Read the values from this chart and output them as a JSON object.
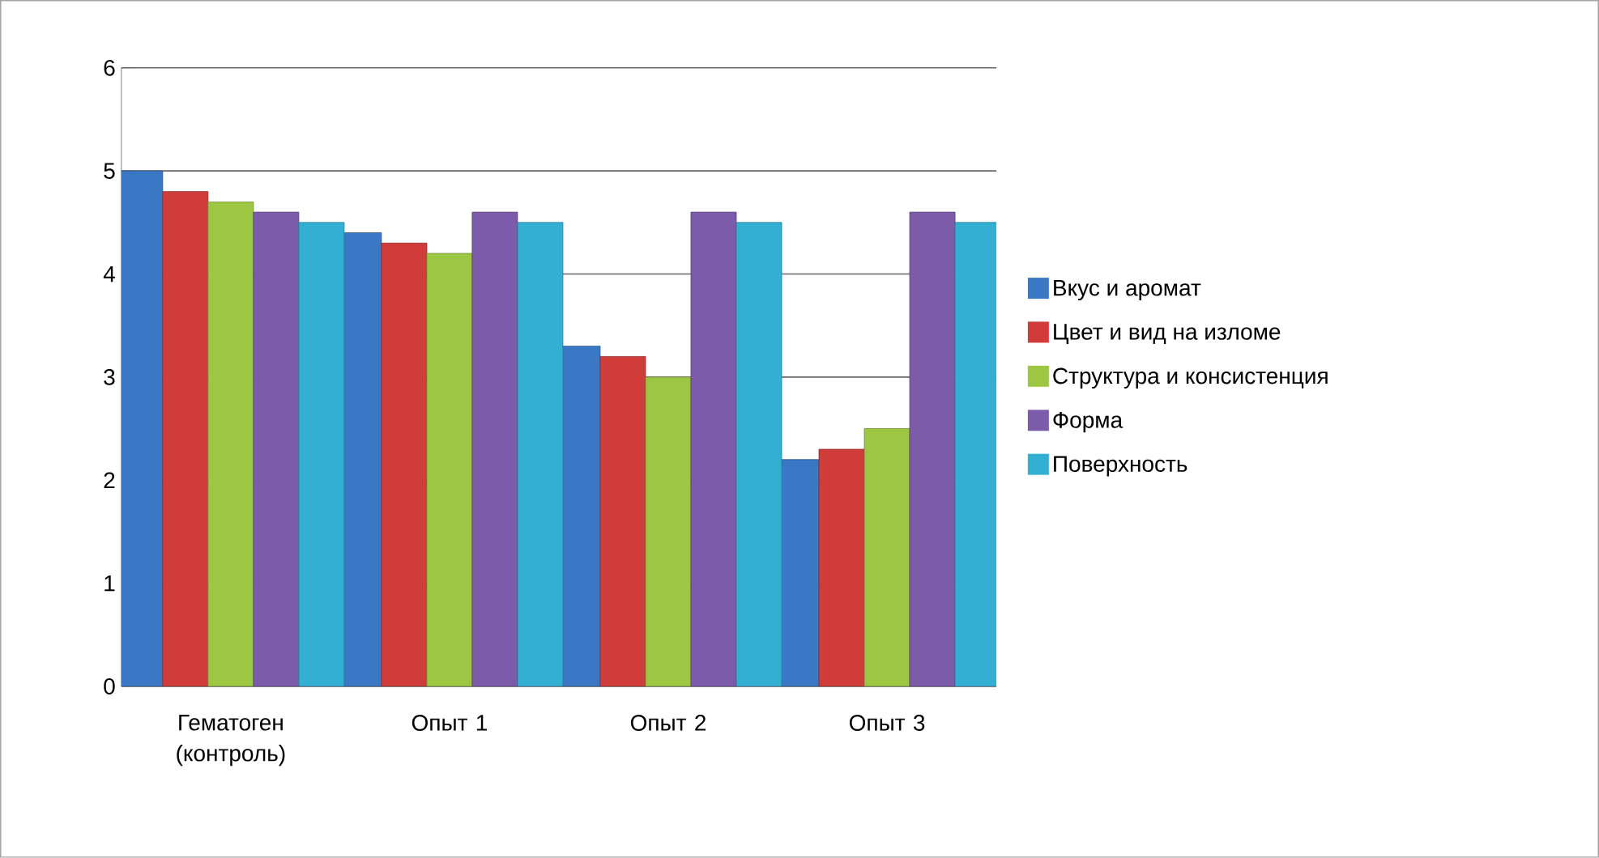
{
  "chart_data": {
    "type": "bar",
    "categories": [
      "Гематоген (контроль)",
      "Опыт 1",
      "Опыт 2",
      "Опыт 3"
    ],
    "series": [
      {
        "name": "Вкус и аромат",
        "color": "#3a78c6",
        "values": [
          5.0,
          4.4,
          3.3,
          2.2
        ]
      },
      {
        "name": "Цвет и вид на изломе",
        "color": "#d03c3a",
        "values": [
          4.8,
          4.3,
          3.2,
          2.3
        ]
      },
      {
        "name": "Структура и консистенция",
        "color": "#9dc742",
        "values": [
          4.7,
          4.2,
          3.0,
          2.5
        ]
      },
      {
        "name": "Форма",
        "color": "#7d5bab",
        "values": [
          4.6,
          4.6,
          4.6,
          4.6
        ]
      },
      {
        "name": "Поверхность",
        "color": "#33afd3",
        "values": [
          4.5,
          4.5,
          4.5,
          4.5
        ]
      }
    ],
    "ylim": [
      0,
      6
    ],
    "yticks": [
      0,
      1,
      2,
      3,
      4,
      5,
      6
    ],
    "grid": "y",
    "legend": "right"
  }
}
